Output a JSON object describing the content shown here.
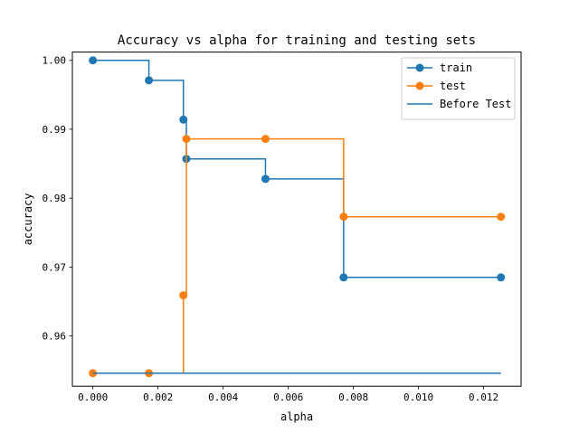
{
  "chart_data": {
    "type": "line",
    "title": "Accuracy vs alpha for training and testing sets",
    "xlabel": "alpha",
    "ylabel": "accuracy",
    "xlim": [
      -0.00063,
      0.01315
    ],
    "ylim": [
      0.9527,
      1.0012
    ],
    "xticks": [
      0.0,
      0.002,
      0.004,
      0.006,
      0.008,
      0.01,
      0.012
    ],
    "xtick_labels": [
      "0.000",
      "0.002",
      "0.004",
      "0.006",
      "0.008",
      "0.010",
      "0.012"
    ],
    "yticks": [
      0.96,
      0.97,
      0.98,
      0.99,
      1.0
    ],
    "ytick_labels": [
      "0.96",
      "0.97",
      "0.98",
      "0.99",
      "1.00"
    ],
    "legend_position": "top-right",
    "grid": false,
    "series": [
      {
        "name": "train",
        "color": "#1f77b4",
        "style": "steps-post",
        "markers": true,
        "x": [
          0.0,
          0.00172,
          0.00278,
          0.00287,
          0.0053,
          0.0077,
          0.01253
        ],
        "y": [
          1.0,
          0.9971,
          0.9914,
          0.9857,
          0.9828,
          0.9685,
          0.9685
        ]
      },
      {
        "name": "test",
        "color": "#ff7f0e",
        "style": "steps-post",
        "markers": true,
        "x": [
          0.0,
          0.00172,
          0.00278,
          0.00287,
          0.0053,
          0.0077,
          0.01253
        ],
        "y": [
          0.9546,
          0.9546,
          0.9659,
          0.9886,
          0.9886,
          0.9773,
          0.9773
        ]
      },
      {
        "name": "Before Test",
        "color": "#1f77b4",
        "style": "line",
        "markers": false,
        "x": [
          0.0,
          0.01253
        ],
        "y": [
          0.9546,
          0.9546
        ]
      }
    ]
  }
}
